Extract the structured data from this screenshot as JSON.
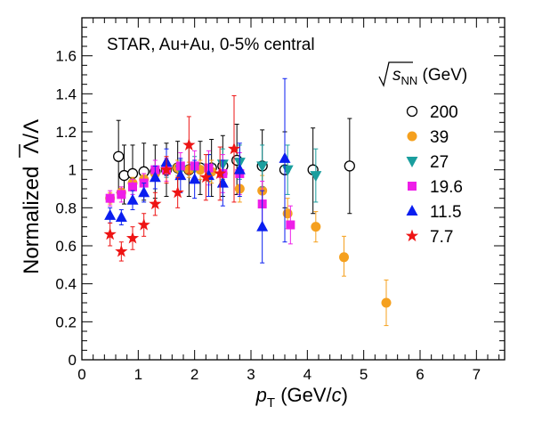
{
  "chart_data": {
    "type": "scatter",
    "annotation": "STAR, Au+Au, 0-5% central",
    "xlabel": {
      "main": "p",
      "sub": "T",
      "rest_open": " (GeV/",
      "italic": "c",
      "rest_close": ")"
    },
    "ylabel": {
      "main": "Normalized",
      "tail": "/Λ",
      "barred": "Λ"
    },
    "legend_title": {
      "sqrt": "s",
      "sub": "NN",
      "unit": " (GeV)"
    },
    "xlim": [
      0,
      7.5
    ],
    "ylim": [
      0,
      1.8
    ],
    "x_ticks": [
      0,
      1,
      2,
      3,
      4,
      5,
      6,
      7
    ],
    "x_tick_labels": [
      "0",
      "1",
      "2",
      "3",
      "4",
      "5",
      "6",
      "7"
    ],
    "y_ticks": [
      0,
      0.2,
      0.4,
      0.6,
      0.8,
      1,
      1.2,
      1.4,
      1.6
    ],
    "y_tick_labels": [
      "0",
      "0.2",
      "0.4",
      "0.6",
      "0.8",
      "1",
      "1.2",
      "1.4",
      "1.6"
    ],
    "legend_placement": "top-right",
    "grid": false,
    "series": [
      {
        "name": "200",
        "marker": "circle-open",
        "color": "#000000",
        "points": [
          {
            "x": 0.65,
            "y": 1.07,
            "lo": 0.88,
            "hi": 1.26
          },
          {
            "x": 0.75,
            "y": 0.97,
            "lo": 0.82,
            "hi": 1.13
          },
          {
            "x": 0.9,
            "y": 0.98,
            "lo": 0.84,
            "hi": 1.13
          },
          {
            "x": 1.1,
            "y": 0.99,
            "lo": 0.84,
            "hi": 1.14
          },
          {
            "x": 1.3,
            "y": 0.99,
            "lo": 0.85,
            "hi": 1.13
          },
          {
            "x": 1.5,
            "y": 1.0,
            "lo": 0.86,
            "hi": 1.14
          },
          {
            "x": 1.7,
            "y": 1.01,
            "lo": 0.87,
            "hi": 1.15
          },
          {
            "x": 1.9,
            "y": 1.0,
            "lo": 0.86,
            "hi": 1.14
          },
          {
            "x": 2.1,
            "y": 1.01,
            "lo": 0.87,
            "hi": 1.15
          },
          {
            "x": 2.3,
            "y": 1.01,
            "lo": 0.86,
            "hi": 1.16
          },
          {
            "x": 2.5,
            "y": 1.02,
            "lo": 0.86,
            "hi": 1.18
          },
          {
            "x": 2.75,
            "y": 1.05,
            "lo": 0.87,
            "hi": 1.24
          },
          {
            "x": 3.2,
            "y": 1.02,
            "lo": 0.83,
            "hi": 1.21
          },
          {
            "x": 3.6,
            "y": 1.0,
            "lo": 0.8,
            "hi": 1.2
          },
          {
            "x": 4.1,
            "y": 1.0,
            "lo": 0.77,
            "hi": 1.22
          },
          {
            "x": 4.75,
            "y": 1.02,
            "lo": 0.77,
            "hi": 1.27
          }
        ]
      },
      {
        "name": "39",
        "marker": "circle",
        "color": "#f5a01e",
        "points": [
          {
            "x": 0.5,
            "y": 0.85,
            "lo": 0.82,
            "hi": 0.88
          },
          {
            "x": 0.7,
            "y": 0.88,
            "lo": 0.85,
            "hi": 0.91
          },
          {
            "x": 0.9,
            "y": 0.93,
            "lo": 0.9,
            "hi": 0.96
          },
          {
            "x": 1.1,
            "y": 0.95,
            "lo": 0.92,
            "hi": 0.98
          },
          {
            "x": 1.3,
            "y": 0.98,
            "lo": 0.95,
            "hi": 1.01
          },
          {
            "x": 1.5,
            "y": 1.0,
            "lo": 0.97,
            "hi": 1.03
          },
          {
            "x": 1.7,
            "y": 1.01,
            "lo": 0.97,
            "hi": 1.05
          },
          {
            "x": 1.9,
            "y": 1.0,
            "lo": 0.96,
            "hi": 1.04
          },
          {
            "x": 2.1,
            "y": 1.0,
            "lo": 0.95,
            "hi": 1.05
          },
          {
            "x": 2.3,
            "y": 0.99,
            "lo": 0.93,
            "hi": 1.05
          },
          {
            "x": 2.5,
            "y": 0.98,
            "lo": 0.91,
            "hi": 1.05
          },
          {
            "x": 2.8,
            "y": 0.9,
            "lo": 0.83,
            "hi": 0.97
          },
          {
            "x": 3.2,
            "y": 0.89,
            "lo": 0.81,
            "hi": 0.97
          },
          {
            "x": 3.65,
            "y": 0.77,
            "lo": 0.69,
            "hi": 0.85
          },
          {
            "x": 4.15,
            "y": 0.7,
            "lo": 0.62,
            "hi": 0.78
          },
          {
            "x": 4.65,
            "y": 0.54,
            "lo": 0.44,
            "hi": 0.65
          },
          {
            "x": 5.4,
            "y": 0.3,
            "lo": 0.18,
            "hi": 0.42
          }
        ]
      },
      {
        "name": "27",
        "marker": "triangle-down",
        "color": "#1a9e9e",
        "points": [
          {
            "x": 1.5,
            "y": 1.0,
            "lo": 0.96,
            "hi": 1.04
          },
          {
            "x": 1.75,
            "y": 1.0,
            "lo": 0.95,
            "hi": 1.05
          },
          {
            "x": 2.0,
            "y": 1.01,
            "lo": 0.95,
            "hi": 1.07
          },
          {
            "x": 2.25,
            "y": 1.01,
            "lo": 0.94,
            "hi": 1.08
          },
          {
            "x": 2.5,
            "y": 1.03,
            "lo": 0.95,
            "hi": 1.11
          },
          {
            "x": 2.8,
            "y": 1.04,
            "lo": 0.95,
            "hi": 1.13
          },
          {
            "x": 3.2,
            "y": 1.02,
            "lo": 0.91,
            "hi": 1.13
          },
          {
            "x": 3.65,
            "y": 1.0,
            "lo": 0.87,
            "hi": 1.13
          },
          {
            "x": 4.15,
            "y": 0.97,
            "lo": 0.83,
            "hi": 1.11
          }
        ]
      },
      {
        "name": "19.6",
        "marker": "square",
        "color": "#ee1ee8",
        "points": [
          {
            "x": 0.5,
            "y": 0.85,
            "lo": 0.81,
            "hi": 0.89
          },
          {
            "x": 0.7,
            "y": 0.87,
            "lo": 0.83,
            "hi": 0.91
          },
          {
            "x": 0.9,
            "y": 0.91,
            "lo": 0.87,
            "hi": 0.95
          },
          {
            "x": 1.1,
            "y": 0.93,
            "lo": 0.89,
            "hi": 0.98
          },
          {
            "x": 1.3,
            "y": 1.0,
            "lo": 0.95,
            "hi": 1.05
          },
          {
            "x": 1.5,
            "y": 1.0,
            "lo": 0.94,
            "hi": 1.06
          },
          {
            "x": 1.75,
            "y": 1.02,
            "lo": 0.95,
            "hi": 1.09
          },
          {
            "x": 2.0,
            "y": 1.02,
            "lo": 0.94,
            "hi": 1.1
          },
          {
            "x": 2.25,
            "y": 1.01,
            "lo": 0.92,
            "hi": 1.1
          },
          {
            "x": 2.5,
            "y": 0.98,
            "lo": 0.88,
            "hi": 1.08
          },
          {
            "x": 2.8,
            "y": 0.98,
            "lo": 0.87,
            "hi": 1.09
          },
          {
            "x": 3.2,
            "y": 0.82,
            "lo": 0.7,
            "hi": 0.94
          },
          {
            "x": 3.7,
            "y": 0.71,
            "lo": 0.61,
            "hi": 0.81
          }
        ]
      },
      {
        "name": "11.5",
        "marker": "triangle-up",
        "color": "#0a1ef0",
        "points": [
          {
            "x": 0.5,
            "y": 0.76,
            "lo": 0.72,
            "hi": 0.8
          },
          {
            "x": 0.7,
            "y": 0.75,
            "lo": 0.71,
            "hi": 0.79
          },
          {
            "x": 0.9,
            "y": 0.84,
            "lo": 0.79,
            "hi": 0.89
          },
          {
            "x": 1.1,
            "y": 0.88,
            "lo": 0.83,
            "hi": 0.93
          },
          {
            "x": 1.3,
            "y": 0.96,
            "lo": 0.9,
            "hi": 1.02
          },
          {
            "x": 1.5,
            "y": 1.04,
            "lo": 0.97,
            "hi": 1.11
          },
          {
            "x": 1.75,
            "y": 0.97,
            "lo": 0.88,
            "hi": 1.06
          },
          {
            "x": 2.0,
            "y": 0.95,
            "lo": 0.85,
            "hi": 1.05
          },
          {
            "x": 2.25,
            "y": 0.97,
            "lo": 0.86,
            "hi": 1.08
          },
          {
            "x": 2.5,
            "y": 0.93,
            "lo": 0.81,
            "hi": 1.05
          },
          {
            "x": 2.8,
            "y": 1.0,
            "lo": 0.86,
            "hi": 1.14
          },
          {
            "x": 3.2,
            "y": 0.7,
            "lo": 0.51,
            "hi": 0.89
          },
          {
            "x": 3.6,
            "y": 1.06,
            "lo": 0.62,
            "hi": 1.48
          }
        ]
      },
      {
        "name": "7.7",
        "marker": "star",
        "color": "#ee1414",
        "points": [
          {
            "x": 0.5,
            "y": 0.66,
            "lo": 0.6,
            "hi": 0.72
          },
          {
            "x": 0.7,
            "y": 0.57,
            "lo": 0.52,
            "hi": 0.62
          },
          {
            "x": 0.9,
            "y": 0.64,
            "lo": 0.58,
            "hi": 0.7
          },
          {
            "x": 1.1,
            "y": 0.71,
            "lo": 0.65,
            "hi": 0.77
          },
          {
            "x": 1.3,
            "y": 0.82,
            "lo": 0.76,
            "hi": 0.88
          },
          {
            "x": 1.5,
            "y": 1.0,
            "lo": 0.93,
            "hi": 1.07
          },
          {
            "x": 1.7,
            "y": 0.88,
            "lo": 0.8,
            "hi": 0.96
          },
          {
            "x": 1.9,
            "y": 1.13,
            "lo": 0.98,
            "hi": 1.28
          },
          {
            "x": 2.2,
            "y": 0.96,
            "lo": 0.84,
            "hi": 1.08
          },
          {
            "x": 2.45,
            "y": 0.98,
            "lo": 0.84,
            "hi": 1.12
          },
          {
            "x": 2.7,
            "y": 1.11,
            "lo": 0.83,
            "hi": 1.39
          }
        ]
      }
    ]
  }
}
